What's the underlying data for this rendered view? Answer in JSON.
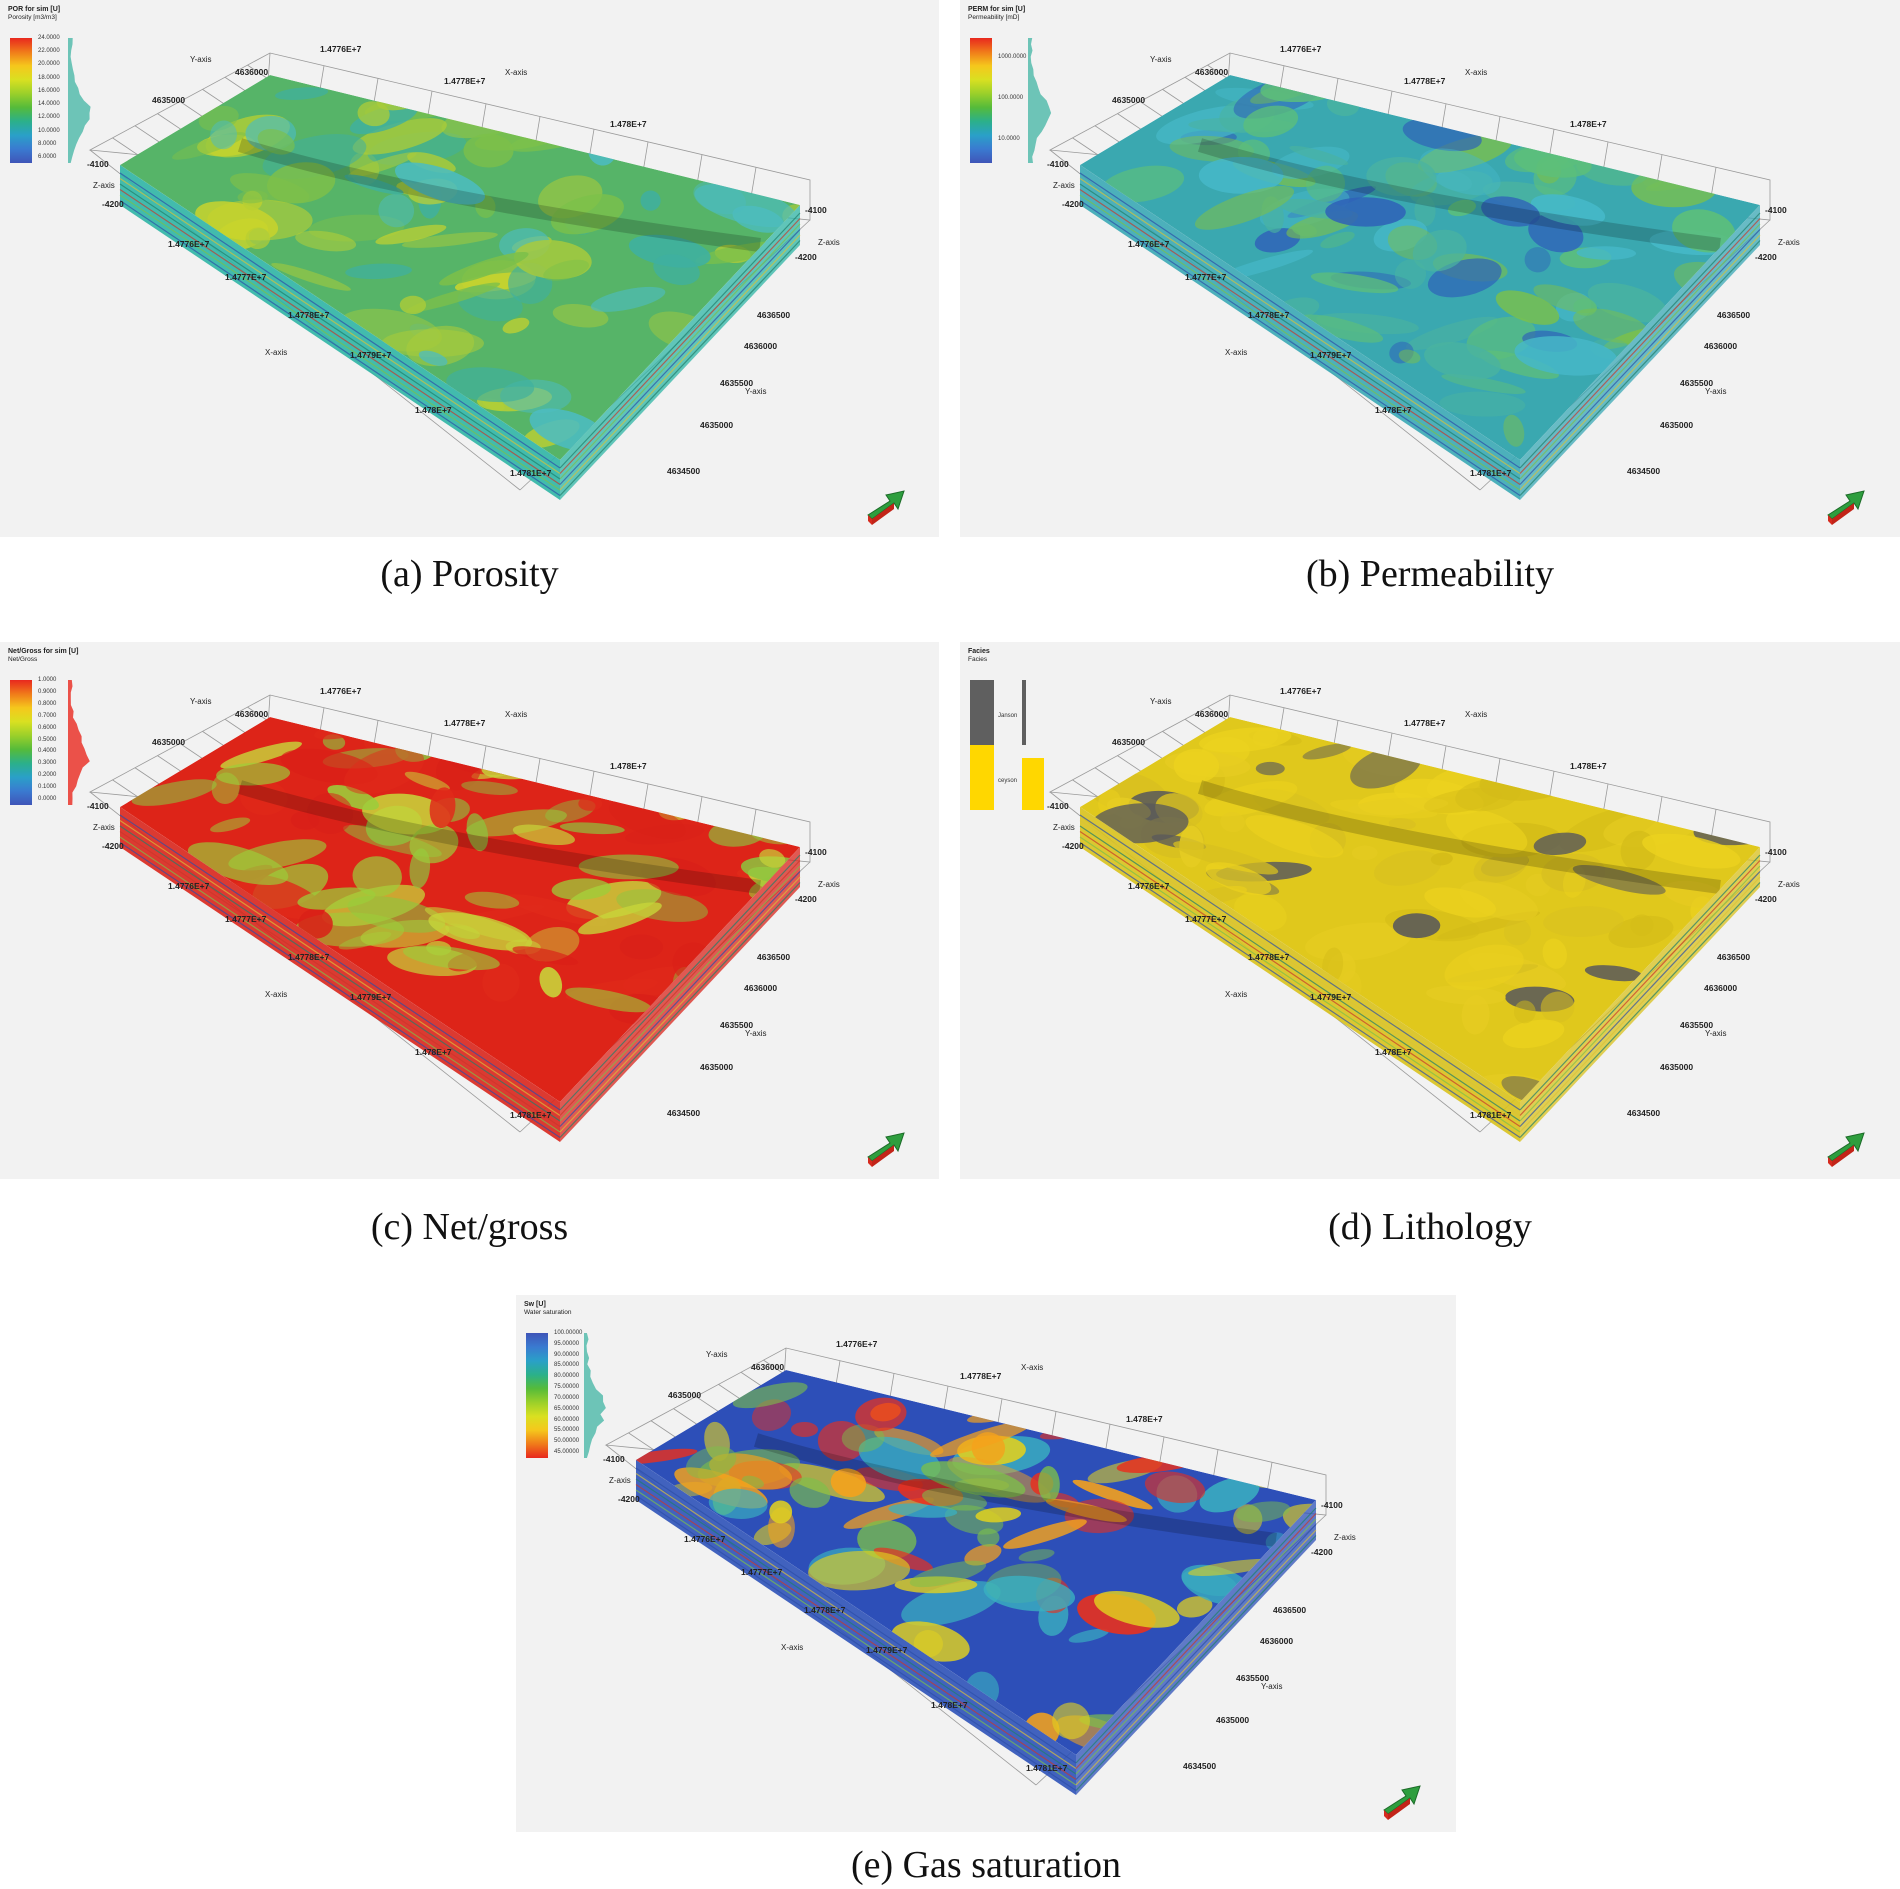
{
  "panels": [
    {
      "id": "a",
      "caption": "(a) Porosity",
      "legend_title": "POR for sim [U]",
      "legend_subtitle": "Porosity [m3/m3]",
      "legend_ticks": [
        "24.0000",
        "22.0000",
        "20.0000",
        "18.0000",
        "16.0000",
        "14.0000",
        "12.0000",
        "10.0000",
        "8.0000",
        "6.0000"
      ],
      "colormap": [
        "#e8281e",
        "#f07a1a",
        "#f5c71c",
        "#d9e021",
        "#9bd02a",
        "#55bb3a",
        "#2bb08a",
        "#2aa0c8",
        "#3a7ad0",
        "#3f55b8"
      ],
      "surface_colors": [
        "#56b468",
        "#7cc04a",
        "#a9cb3a",
        "#3fb0a0",
        "#4cbcc0",
        "#c9d42c"
      ],
      "accent": "#2fb5a5"
    },
    {
      "id": "b",
      "caption": "(b) Permeability",
      "legend_title": "PERM for sim [U]",
      "legend_subtitle": "Permeability [mD]",
      "legend_ticks": [
        "1000.0000",
        "100.0000",
        "10.0000"
      ],
      "colormap": [
        "#e8281e",
        "#f07a1a",
        "#f5c71c",
        "#d9e021",
        "#9bd02a",
        "#55bb3a",
        "#2bb08a",
        "#2aa0c8",
        "#3a7ad0",
        "#3f55b8"
      ],
      "surface_colors": [
        "#3aa8b0",
        "#46b8c8",
        "#5dbf7a",
        "#2f62b8",
        "#4ab3a0",
        "#7cc04a"
      ],
      "accent": "#3aa8b5"
    },
    {
      "id": "c",
      "caption": "(c) Net/gross",
      "legend_title": "Net/Gross for sim [U]",
      "legend_subtitle": "Net/Gross",
      "legend_ticks": [
        "1.0000",
        "0.9000",
        "0.8000",
        "0.7000",
        "0.6000",
        "0.5000",
        "0.4000",
        "0.3000",
        "0.2000",
        "0.1000",
        "0.0000"
      ],
      "colormap": [
        "#e8281e",
        "#f07a1a",
        "#f5c71c",
        "#d9e021",
        "#9bd02a",
        "#55bb3a",
        "#2bb08a",
        "#2aa0c8",
        "#3a7ad0",
        "#3f55b8"
      ],
      "surface_colors": [
        "#dd2418",
        "#e02a1a",
        "#9ccd3a",
        "#c8d43a",
        "#d92018",
        "#8cc63f"
      ],
      "accent": "#d9261c"
    },
    {
      "id": "d",
      "caption": "(d) Lithology",
      "legend_title": "Facies",
      "legend_subtitle": "Facies",
      "legend_ticks": [
        "Janson",
        "ceyson"
      ],
      "colormap": [
        "#5f5f5f",
        "#ffd700"
      ],
      "surface_colors": [
        "#e0c81c",
        "#d8c020",
        "#ecd21e",
        "#5a5a5a",
        "#d4bc18",
        "#e6cc22"
      ],
      "accent": "#d9c21c"
    },
    {
      "id": "e",
      "caption": "(e) Gas saturation",
      "legend_title": "Sw [U]",
      "legend_subtitle": "Water saturation",
      "legend_ticks": [
        "100.00000",
        "95.00000",
        "90.00000",
        "85.00000",
        "80.00000",
        "75.00000",
        "70.00000",
        "65.00000",
        "60.00000",
        "55.00000",
        "50.00000",
        "45.00000"
      ],
      "colormap": [
        "#3f55b8",
        "#3a7ad0",
        "#2aa0c8",
        "#2bb08a",
        "#55bb3a",
        "#9bd02a",
        "#d9e021",
        "#f5c71c",
        "#f07a1a",
        "#e8281e"
      ],
      "surface_colors": [
        "#2d4fb8",
        "#e8301e",
        "#f5a21c",
        "#3ab0c0",
        "#7cc04a",
        "#e0d020"
      ],
      "accent": "#2d52b8"
    }
  ],
  "axes": {
    "x_axis_label": "X-axis",
    "y_axis_label": "Y-axis",
    "z_axis_label": "Z-axis",
    "top_x_ticks": [
      "1.4776E+7",
      "1.4778E+7",
      "1.478E+7"
    ],
    "front_x_ticks": [
      "1.4776E+7",
      "1.4777E+7",
      "1.4778E+7",
      "1.4779E+7",
      "1.478E+7",
      "1.4781E+7"
    ],
    "left_y_ticks": [
      "4636000",
      "4635000"
    ],
    "right_y_ticks": [
      "4636500",
      "4636000",
      "4635500",
      "4635000",
      "4634500"
    ],
    "z_ticks": [
      "-4100",
      "-4200"
    ]
  }
}
